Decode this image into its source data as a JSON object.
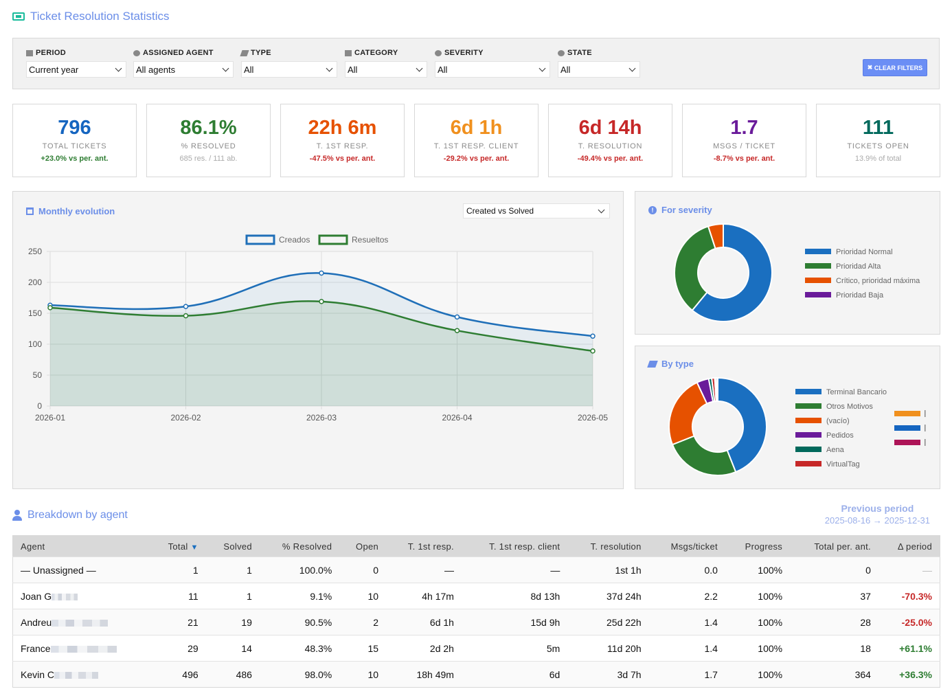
{
  "header": {
    "title": "Ticket Resolution Statistics"
  },
  "filters": {
    "period": {
      "label": "PERIOD",
      "value": "Current year"
    },
    "agent": {
      "label": "ASSIGNED AGENT",
      "value": "All agents"
    },
    "type": {
      "label": "TYPE",
      "value": "All"
    },
    "category": {
      "label": "CATEGORY",
      "value": "All"
    },
    "severity": {
      "label": "SEVERITY",
      "value": "All"
    },
    "state": {
      "label": "STATE",
      "value": "All"
    },
    "clear_label": "CLEAR FILTERS"
  },
  "kpis": [
    {
      "value": "796",
      "label": "TOTAL TICKETS",
      "sub": "+23.0% vs per. ant.",
      "color": "#1565c0",
      "sub_color": "#2e7d32"
    },
    {
      "value": "86.1%",
      "label": "% RESOLVED",
      "sub": "685 res. / 111 ab.",
      "color": "#2e7d32",
      "sub_color": "muted"
    },
    {
      "value": "22h 6m",
      "label": "T. 1ST RESP.",
      "sub": "-47.5% vs per. ant.",
      "color": "#e65100",
      "sub_color": "#c62828"
    },
    {
      "value": "6d 1h",
      "label": "T. 1ST RESP. CLIENT",
      "sub": "-29.2% vs per. ant.",
      "color": "#f0901e",
      "sub_color": "#c62828"
    },
    {
      "value": "6d 14h",
      "label": "T. RESOLUTION",
      "sub": "-49.4% vs per. ant.",
      "color": "#c62828",
      "sub_color": "#c62828"
    },
    {
      "value": "1.7",
      "label": "MSGS / TICKET",
      "sub": "-8.7% vs per. ant.",
      "color": "#6a1b9a",
      "sub_color": "#c62828"
    },
    {
      "value": "111",
      "label": "TICKETS OPEN",
      "sub": "13.9% of total",
      "color": "#00695c",
      "sub_color": "muted"
    }
  ],
  "monthly": {
    "title": "Monthly evolution",
    "select_value": "Created vs Solved"
  },
  "severity_panel": {
    "title": "For severity"
  },
  "type_panel": {
    "title": "By type"
  },
  "chart_data": [
    {
      "type": "line",
      "categories": [
        "2026-01",
        "2026-02",
        "2026-03",
        "2026-04",
        "2026-05"
      ],
      "series": [
        {
          "name": "Creados",
          "values": [
            163,
            161,
            215,
            144,
            113
          ],
          "color": "#1f6fb8"
        },
        {
          "name": "Resueltos",
          "values": [
            159,
            146,
            169,
            122,
            89
          ],
          "color": "#2e7d32"
        }
      ],
      "ylim": [
        0,
        250
      ],
      "yticks": [
        0,
        50,
        100,
        150,
        200,
        250
      ],
      "grid": true,
      "legend": "top"
    },
    {
      "type": "pie",
      "title": "For severity",
      "categories": [
        "Prioridad Normal",
        "Prioridad Alta",
        "Crítico, prioridad máxima",
        "Prioridad Baja"
      ],
      "values": [
        61,
        34,
        5,
        0
      ],
      "colors": [
        "#1a6fc0",
        "#2e7d32",
        "#e65100",
        "#6a1b9a"
      ],
      "legend": "right"
    },
    {
      "type": "pie",
      "title": "By type",
      "categories": [
        "Terminal Bancario",
        "Otros Motivos",
        "(vacío)",
        "Pedidos",
        "Aena",
        "VirtualTag"
      ],
      "values": [
        44,
        25,
        24,
        4,
        1,
        1
      ],
      "extra_values": [
        0.5,
        0.5
      ],
      "colors": [
        "#1a6fc0",
        "#2e7d32",
        "#e65100",
        "#6a1b9a",
        "#00695c",
        "#c62828"
      ],
      "extra_colors": [
        "#f0901e",
        "#1565c0",
        "#ad1457"
      ],
      "legend": "right"
    }
  ],
  "breakdown": {
    "title": "Breakdown by agent",
    "prev_label": "Previous period",
    "prev_range": "2025-08-16 → 2025-12-31",
    "columns": [
      "Agent",
      "Total ▼",
      "Solved",
      "% Resolved",
      "Open",
      "T. 1st resp.",
      "T. 1st resp. client",
      "T. resolution",
      "Msgs/ticket",
      "Progress",
      "Total per. ant.",
      "Δ period"
    ],
    "rows": [
      {
        "agent": "— Unassigned —",
        "total": "1",
        "solved": "1",
        "pct": "100.0%",
        "open": "0",
        "t1": "—",
        "t1c": "—",
        "tres": "1st 1h",
        "msgs": "0.0",
        "progress": "100%",
        "prev": "0",
        "delta": "—",
        "delta_kind": "dash"
      },
      {
        "agent": "Joan G",
        "total": "11",
        "solved": "1",
        "pct": "9.1%",
        "open": "10",
        "t1": "4h 17m",
        "t1c": "8d 13h",
        "tres": "37d 24h",
        "msgs": "2.2",
        "progress": "100%",
        "prev": "37",
        "delta": "-70.3%",
        "delta_kind": "neg"
      },
      {
        "agent": "Andreu",
        "total": "21",
        "solved": "19",
        "pct": "90.5%",
        "open": "2",
        "t1": "6d 1h",
        "t1c": "15d 9h",
        "tres": "25d 22h",
        "msgs": "1.4",
        "progress": "100%",
        "prev": "28",
        "delta": "-25.0%",
        "delta_kind": "neg"
      },
      {
        "agent": "France",
        "total": "29",
        "solved": "14",
        "pct": "48.3%",
        "open": "15",
        "t1": "2d 2h",
        "t1c": "5m",
        "tres": "11d 20h",
        "msgs": "1.4",
        "progress": "100%",
        "prev": "18",
        "delta": "+61.1%",
        "delta_kind": "pos"
      },
      {
        "agent": "Kevin C",
        "total": "496",
        "solved": "486",
        "pct": "98.0%",
        "open": "10",
        "t1": "18h 49m",
        "t1c": "6d",
        "tres": "3d 7h",
        "msgs": "1.7",
        "progress": "100%",
        "prev": "364",
        "delta": "+36.3%",
        "delta_kind": "pos"
      }
    ]
  }
}
